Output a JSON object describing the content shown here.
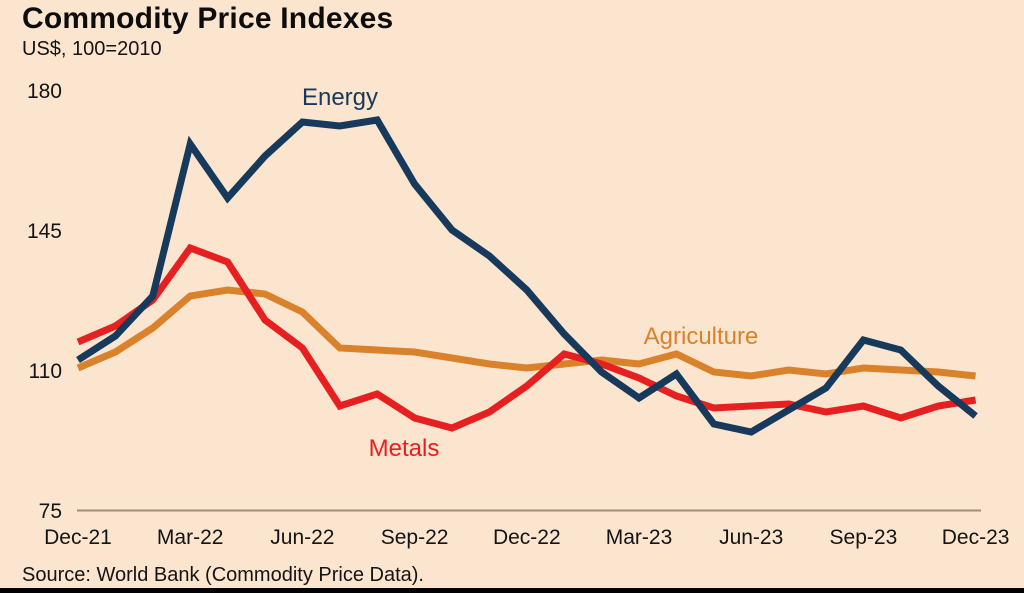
{
  "header": {
    "title": "Commodity Price Indexes",
    "subtitle": "US$, 100=2010"
  },
  "source_note": "Source: World Bank (Commodity Price Data).",
  "colors": {
    "background": "#fbe5cf",
    "energy": "#17395c",
    "metals": "#e62020",
    "agriculture": "#d9822b",
    "axis_line": "#9c8e7d",
    "text": "#141414",
    "bottom_border": "#000000"
  },
  "chart_data": {
    "type": "line",
    "title": "Commodity Price Indexes",
    "subtitle": "US$, 100=2010",
    "xlabel": "",
    "ylabel": "US$, 100=2010",
    "x": [
      "Dec-21",
      "Jan-22",
      "Feb-22",
      "Mar-22",
      "Apr-22",
      "May-22",
      "Jun-22",
      "Jul-22",
      "Aug-22",
      "Sep-22",
      "Oct-22",
      "Nov-22",
      "Dec-22",
      "Jan-23",
      "Feb-23",
      "Mar-23",
      "Apr-23",
      "May-23",
      "Jun-23",
      "Jul-23",
      "Aug-23",
      "Sep-23",
      "Oct-23",
      "Nov-23",
      "Dec-23"
    ],
    "x_tick_labels": [
      "Dec-21",
      "Mar-22",
      "Jun-22",
      "Sep-22",
      "Dec-22",
      "Mar-23",
      "Jun-23",
      "Sep-23",
      "Dec-23"
    ],
    "y_ticks": [
      75,
      110,
      145,
      180
    ],
    "ylim": [
      75,
      183
    ],
    "grid": false,
    "legend_position": "inline-labels",
    "series": [
      {
        "name": "Agriculture",
        "color": "#d9822b",
        "values": [
          111,
          115,
          121,
          129,
          130.5,
          129.5,
          125,
          116,
          115.5,
          115,
          113.5,
          112,
          111,
          112,
          113,
          112,
          114.5,
          110,
          109,
          110.5,
          109.5,
          111,
          110.5,
          110,
          109
        ]
      },
      {
        "name": "Metals",
        "color": "#e62020",
        "values": [
          117.5,
          121.5,
          128,
          141,
          137.5,
          123,
          116,
          101.5,
          104.5,
          98.5,
          96,
          100,
          106.5,
          114.5,
          112,
          108.5,
          104,
          101,
          101.5,
          102,
          100,
          101.5,
          98.5,
          101.5,
          103
        ]
      },
      {
        "name": "Energy",
        "color": "#17395c",
        "values": [
          113,
          119,
          129,
          167,
          153.5,
          164,
          172.5,
          171.5,
          173,
          157,
          145.5,
          139,
          130.5,
          119.5,
          110,
          103.5,
          109.5,
          97,
          95,
          100.5,
          106,
          118,
          115.5,
          106.5,
          99
        ]
      }
    ]
  }
}
